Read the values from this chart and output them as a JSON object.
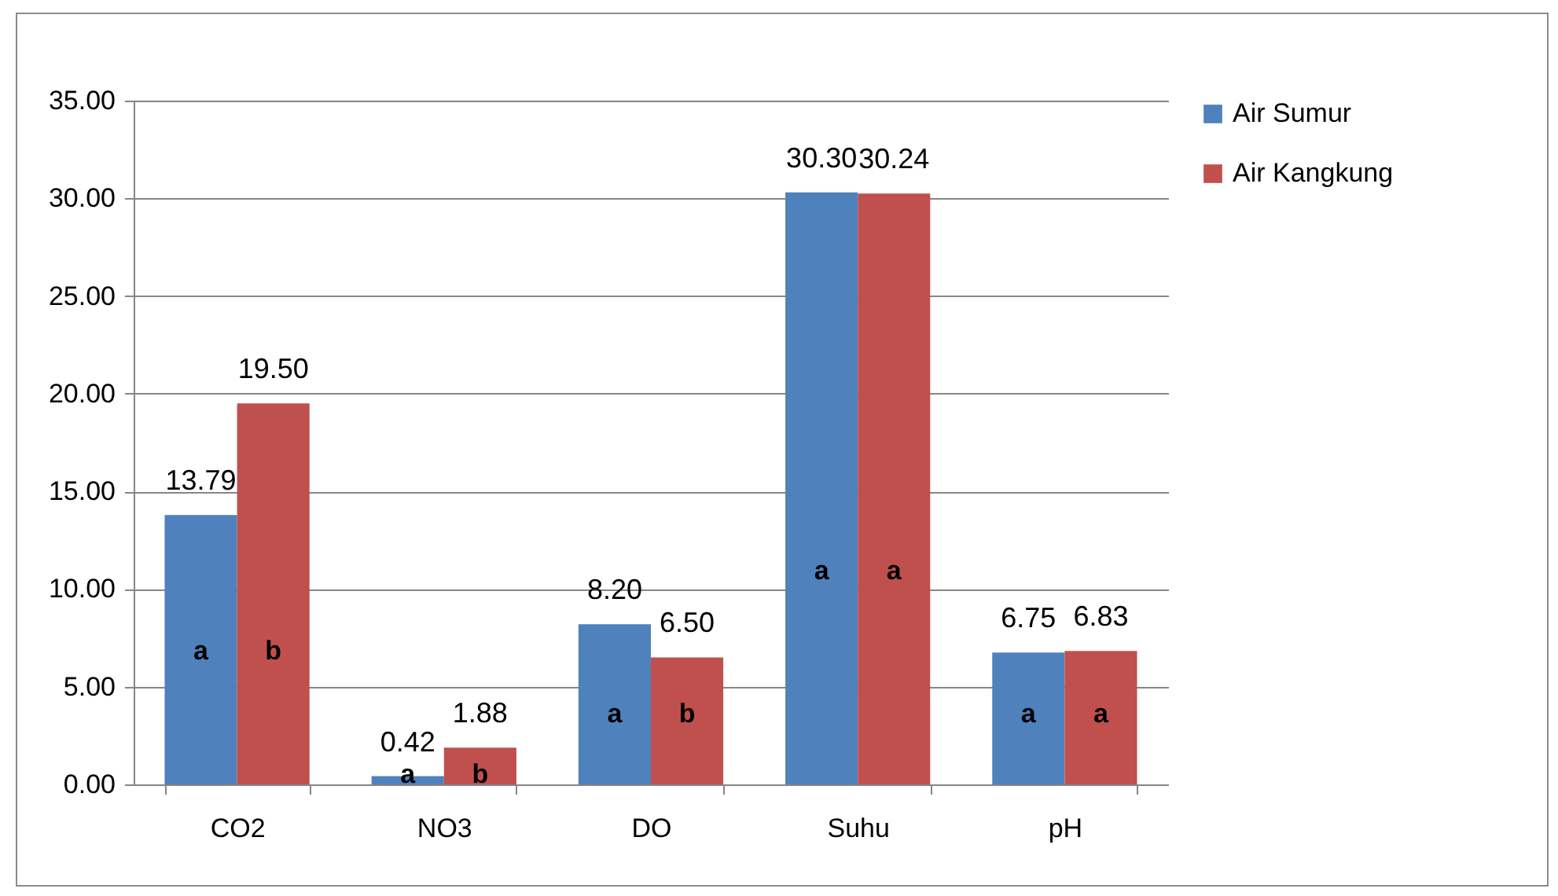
{
  "chart_data": {
    "type": "bar",
    "categories": [
      "CO2",
      "NO3",
      "DO",
      "Suhu",
      "pH"
    ],
    "series": [
      {
        "name": "Air Sumur",
        "color": "#4f81bd",
        "values": [
          13.79,
          0.42,
          8.2,
          30.3,
          6.75
        ],
        "value_labels": [
          "13.79",
          "0.42",
          "8.20",
          "30.30",
          "6.75"
        ]
      },
      {
        "name": "Air Kangkung",
        "color": "#c0504d",
        "values": [
          19.5,
          1.88,
          6.5,
          30.24,
          6.83
        ],
        "value_labels": [
          "19.50",
          "1.88",
          "6.50",
          "30.24",
          "6.83"
        ]
      }
    ],
    "ylim": [
      0,
      35
    ],
    "yticks": [
      {
        "value": 0,
        "label": "0.00"
      },
      {
        "value": 5,
        "label": "5.00"
      },
      {
        "value": 10,
        "label": "10.00"
      },
      {
        "value": 15,
        "label": "15.00"
      },
      {
        "value": 20,
        "label": "20.00"
      },
      {
        "value": 25,
        "label": "25.00"
      },
      {
        "value": 30,
        "label": "30.00"
      },
      {
        "value": 35,
        "label": "35.00"
      }
    ],
    "grid": "y",
    "legend": "right",
    "annotations": [
      {
        "text": "a",
        "x": "CO2",
        "y": 6.8
      },
      {
        "text": "b",
        "x": "CO2",
        "y": 6.8
      },
      {
        "text": "a",
        "x": "NO3",
        "y": 0.5
      },
      {
        "text": "b",
        "x": "NO3",
        "y": 0.5
      },
      {
        "text": "a",
        "x": "DO",
        "y": 3.6
      },
      {
        "text": "b",
        "x": "DO",
        "y": 3.6
      },
      {
        "text": "a",
        "x": "Suhu",
        "y": 10.9
      },
      {
        "text": "a",
        "x": "Suhu",
        "y": 10.9
      },
      {
        "text": "a",
        "x": "pH",
        "y": 3.6
      },
      {
        "text": "a",
        "x": "pH",
        "y": 3.6
      }
    ]
  }
}
